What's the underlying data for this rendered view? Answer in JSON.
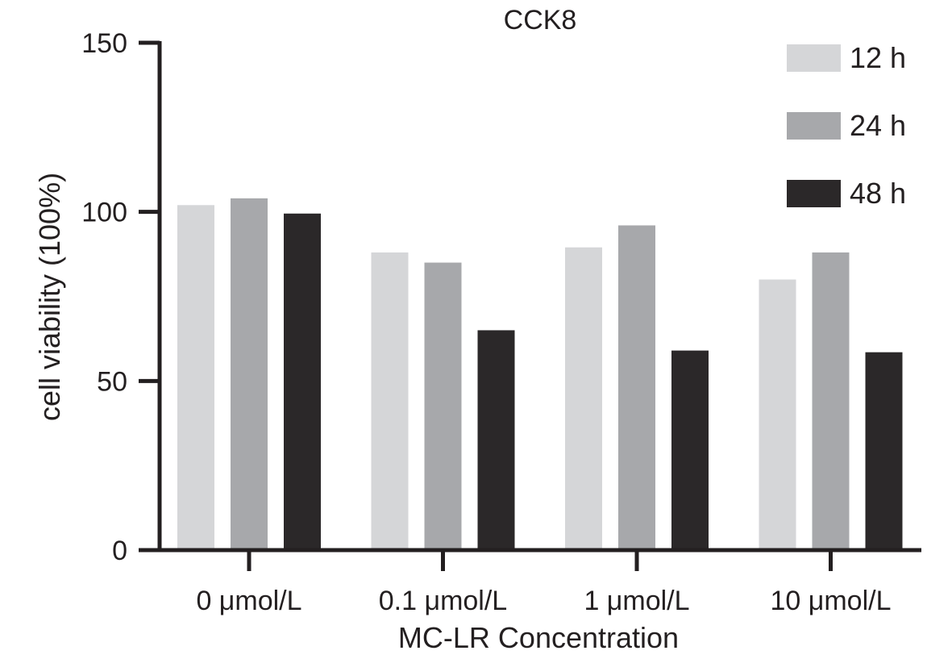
{
  "chart_data": {
    "type": "bar",
    "title": "CCK8",
    "xlabel": "MC-LR Concentration",
    "ylabel": "cell viability (100%)",
    "ylim": [
      0,
      150
    ],
    "yticks": [
      0,
      50,
      100,
      150
    ],
    "categories": [
      "0 μmol/L",
      "0.1 μmol/L",
      "1 μmol/L",
      "10 μmol/L"
    ],
    "series": [
      {
        "name": "12 h",
        "color": "#d5d6d8",
        "values": [
          102,
          88,
          89.5,
          80
        ]
      },
      {
        "name": "24 h",
        "color": "#a7a8ab",
        "values": [
          104,
          85,
          96,
          88
        ]
      },
      {
        "name": "48 h",
        "color": "#2b2829",
        "values": [
          99.5,
          65,
          59,
          58.5
        ]
      }
    ],
    "legend_position": "top-right",
    "grid": false
  }
}
